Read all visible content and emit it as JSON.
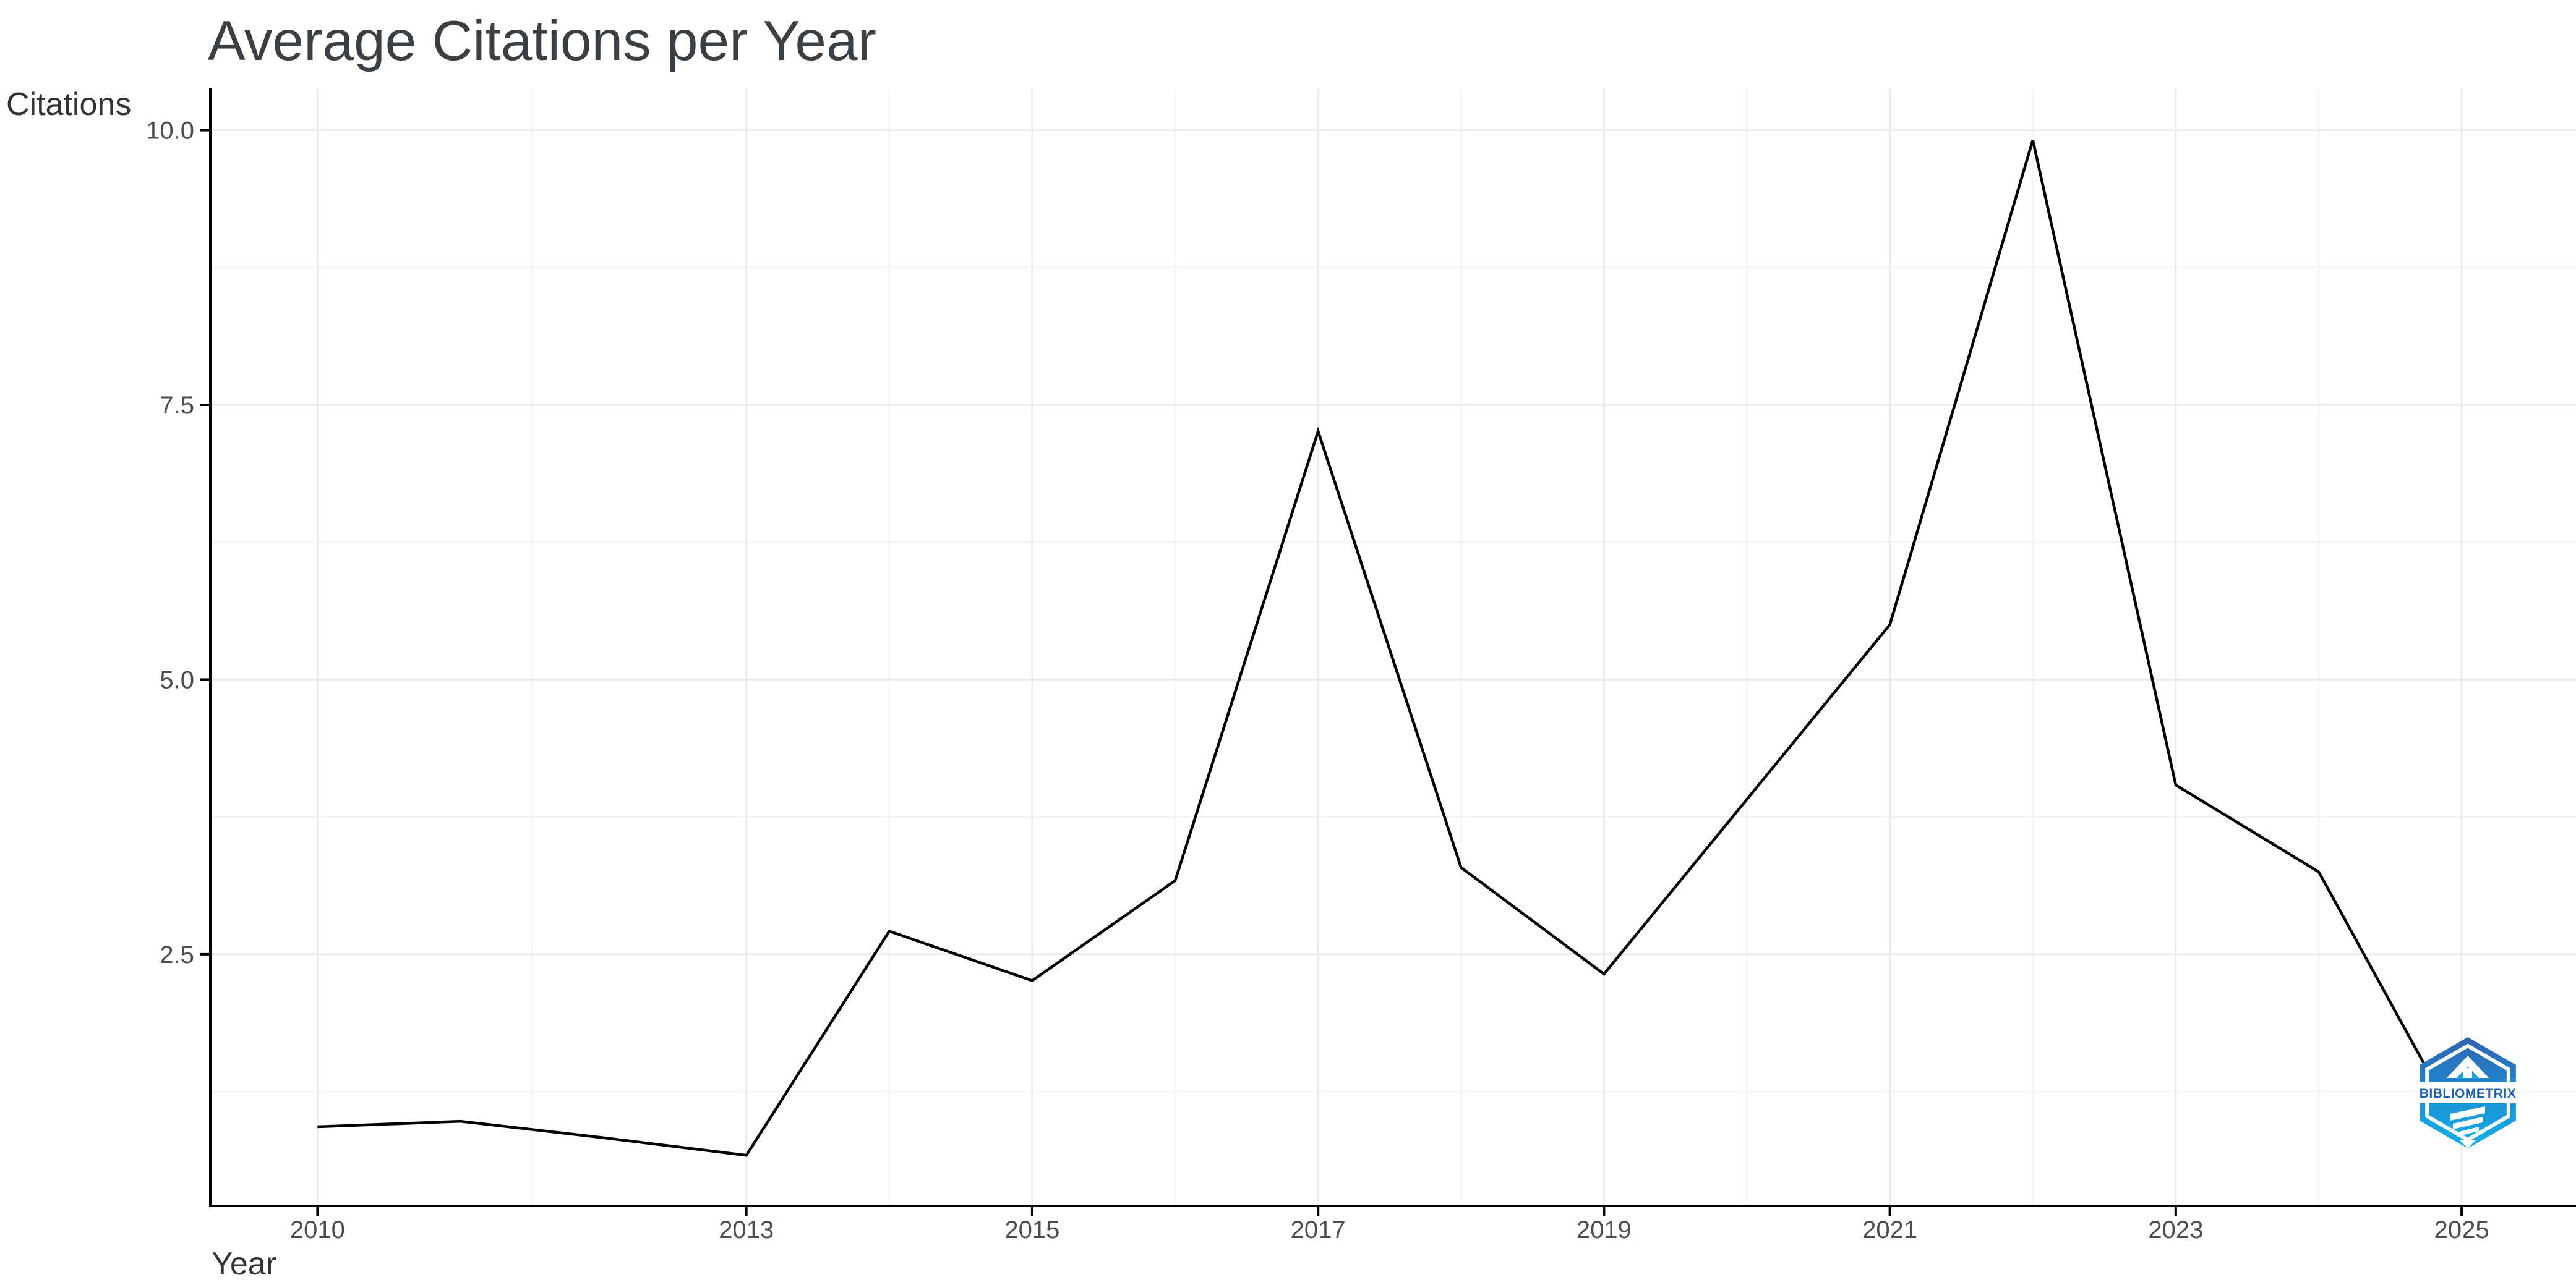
{
  "chart": {
    "title": "Average Citations per Year",
    "x_axis_label": "Year",
    "y_axis_label": "Citations"
  },
  "chart_data": {
    "type": "line",
    "title": "Average Citations per Year",
    "xlabel": "Year",
    "ylabel": "Citations",
    "x": [
      2010,
      2011,
      2012,
      2013,
      2014,
      2015,
      2016,
      2017,
      2018,
      2019,
      2020,
      2021,
      2022,
      2023,
      2024,
      2025
    ],
    "values": [
      0.93,
      0.98,
      0.83,
      0.67,
      2.71,
      2.26,
      3.17,
      7.26,
      3.29,
      2.32,
      3.91,
      5.5,
      9.91,
      4.04,
      3.25,
      0.88
    ],
    "series_name": "Average citations per year",
    "x_major_ticks": [
      2010,
      2013,
      2015,
      2017,
      2019,
      2021,
      2023,
      2025
    ],
    "x_minor_ticks": [
      2011.5,
      2014,
      2016,
      2018,
      2020,
      2022,
      2024
    ],
    "y_major_ticks": [
      {
        "value": 2.5,
        "label": "2.5"
      },
      {
        "value": 5.0,
        "label": "5.0"
      },
      {
        "value": 7.5,
        "label": "7.5"
      },
      {
        "value": 10.0,
        "label": "10.0"
      }
    ],
    "y_minor_ticks": [
      1.25,
      3.75,
      6.25,
      8.75
    ],
    "xlim": [
      2009.25,
      2025.8
    ],
    "ylim": [
      0.21,
      10.38
    ],
    "grid": true,
    "legend": "none",
    "colors": {
      "line": "#000000",
      "axis": "#000000",
      "grid_major": "#ebebeb",
      "grid_minor": "#f5f5f5",
      "tick_label": "#4d4d4d",
      "axis_title": "#333333",
      "title": "#3a3f44"
    }
  },
  "watermark": {
    "text": "BIBLIOMETRIX",
    "colors": {
      "hex_top": "#2e63b2",
      "hex_bottom": "#10b2ef",
      "text": "#1d5fae",
      "detail": "#ffffff"
    }
  }
}
